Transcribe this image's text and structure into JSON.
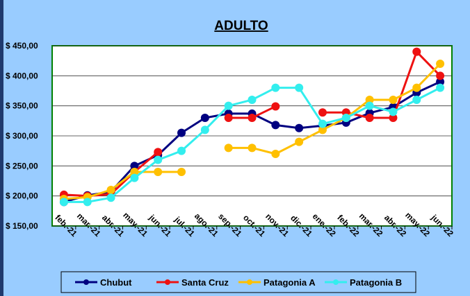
{
  "chart_data": {
    "type": "line",
    "title": "ADULTO",
    "categories": [
      "feb.-21",
      "mar.-21",
      "abr.-21",
      "may.-21",
      "jun.-21",
      "jul.-21",
      "ago.-21",
      "sep.-21",
      "oct.-21",
      "nov.-21",
      "dic.-21",
      "ene.-22",
      "feb.-22",
      "mar.-22",
      "abr.-22",
      "may.-22",
      "jun.-22"
    ],
    "series": [
      {
        "name": "Chubut",
        "color": "#000080",
        "values": [
          190,
          201,
          207,
          250,
          268,
          305,
          330,
          337,
          337,
          318,
          313,
          317,
          322,
          338,
          348,
          372,
          390
        ]
      },
      {
        "name": "Santa Cruz",
        "color": "#ee1111",
        "values": [
          202,
          200,
          203,
          240,
          273,
          null,
          null,
          330,
          330,
          349,
          null,
          339,
          339,
          330,
          330,
          440,
          400
        ]
      },
      {
        "name": "Patagonia A",
        "color": "#ffc000",
        "values": [
          195,
          198,
          210,
          240,
          240,
          240,
          null,
          280,
          280,
          270,
          290,
          310,
          330,
          360,
          360,
          380,
          420
        ]
      },
      {
        "name": "Patagonia B",
        "color": "#33eeee",
        "values": [
          190,
          190,
          197,
          230,
          260,
          275,
          310,
          350,
          360,
          380,
          380,
          320,
          330,
          350,
          340,
          360,
          380
        ]
      }
    ],
    "ylim": [
      150,
      450
    ],
    "yticks": [
      {
        "value": 150,
        "label": "$ 150,00"
      },
      {
        "value": 200,
        "label": "$ 200,00"
      },
      {
        "value": 250,
        "label": "$ 250,00"
      },
      {
        "value": 300,
        "label": "$ 300,00"
      },
      {
        "value": 350,
        "label": "$ 350,00"
      },
      {
        "value": 400,
        "label": "$ 400,00"
      },
      {
        "value": 450,
        "label": "$ 450,00"
      }
    ],
    "grid": true,
    "legend": "bottom"
  }
}
